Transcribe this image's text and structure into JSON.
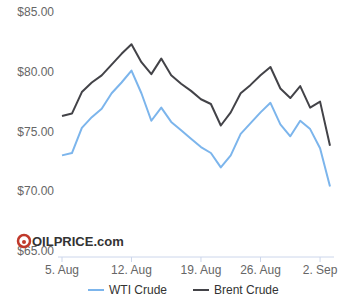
{
  "chart_data": {
    "type": "line",
    "categories": [
      "5. Aug",
      null,
      null,
      null,
      null,
      null,
      null,
      "12. Aug",
      null,
      null,
      null,
      null,
      null,
      null,
      "19. Aug",
      null,
      null,
      null,
      null,
      null,
      "26. Aug",
      null,
      null,
      null,
      null,
      null,
      "2. Sep",
      null
    ],
    "series": [
      {
        "name": "WTI Crude",
        "color": "#7cb5ec",
        "values": [
          73.0,
          73.2,
          75.3,
          76.2,
          76.9,
          78.2,
          79.1,
          80.1,
          78.2,
          75.9,
          77.0,
          75.8,
          75.1,
          74.4,
          73.7,
          73.2,
          72.0,
          73.0,
          74.8,
          75.7,
          76.6,
          77.4,
          75.6,
          74.6,
          75.9,
          75.2,
          73.6,
          70.4
        ]
      },
      {
        "name": "Brent Crude",
        "color": "#434348",
        "values": [
          76.3,
          76.5,
          78.3,
          79.1,
          79.7,
          80.6,
          81.5,
          82.3,
          80.8,
          79.8,
          81.1,
          79.7,
          79.0,
          78.4,
          77.7,
          77.3,
          75.5,
          76.6,
          78.2,
          78.9,
          79.7,
          80.4,
          78.6,
          77.8,
          78.8,
          77.0,
          77.5,
          73.8
        ]
      }
    ],
    "ylim": [
      65,
      85
    ],
    "yticks": [
      {
        "value": 65,
        "label": "$65.00"
      },
      {
        "value": 70,
        "label": "$70.00"
      },
      {
        "value": 75,
        "label": "$75.00"
      },
      {
        "value": 80,
        "label": "$80.00"
      },
      {
        "value": 85,
        "label": "$85.00"
      }
    ],
    "grid": false,
    "legend": "bottom",
    "annotations": [
      "OILPRICE.com"
    ]
  }
}
